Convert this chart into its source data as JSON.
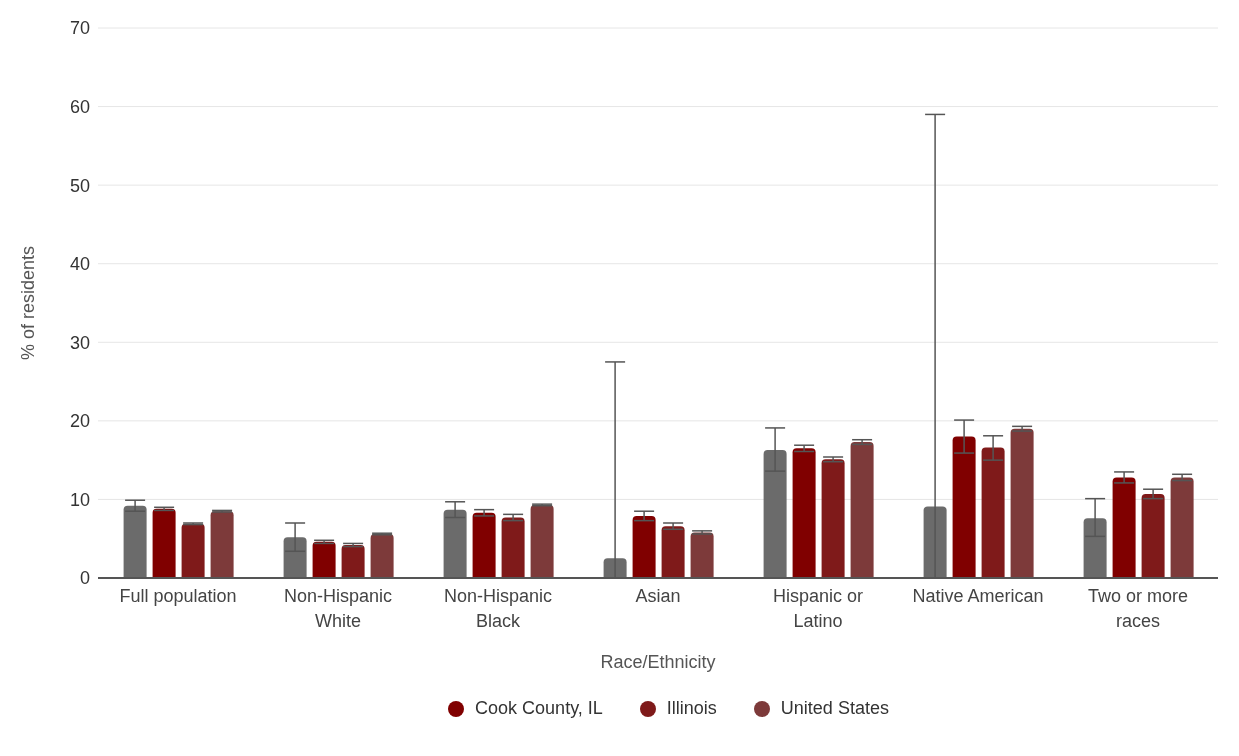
{
  "chart_data": {
    "type": "bar",
    "xlabel": "Race/Ethnicity",
    "ylabel": "% of residents",
    "categories": [
      "Full population",
      "Non-Hispanic White",
      "Non-Hispanic Black",
      "Asian",
      "Hispanic or Latino",
      "Native American",
      "Two or more races"
    ],
    "series": [
      {
        "color": "#6b6b6b",
        "values": [
          9.2,
          5.2,
          8.7,
          2.5,
          16.3,
          9.1,
          7.6
        ],
        "errors": [
          0.7,
          [
            3.4,
            7.0
          ],
          1.0,
          [
            0,
            27.5
          ],
          [
            13.6,
            19.1
          ],
          [
            0,
            59
          ],
          [
            5.3,
            10.1
          ]
        ]
      },
      {
        "name": "Cook County, IL",
        "color": "#800000",
        "values": [
          8.8,
          4.6,
          8.3,
          7.9,
          16.5,
          18.0,
          12.8
        ],
        "errors": [
          0.2,
          0.2,
          0.4,
          0.6,
          0.4,
          [
            15.9,
            20.1
          ],
          0.7
        ]
      },
      {
        "name": "Illinois",
        "color": "#7f1a1a",
        "values": [
          6.9,
          4.2,
          7.7,
          6.6,
          15.1,
          16.6,
          10.7
        ],
        "errors": [
          0.1,
          0.2,
          0.4,
          0.4,
          0.3,
          [
            15.0,
            18.1
          ],
          0.6
        ]
      },
      {
        "name": "United States",
        "color": "#7d3a3a",
        "values": [
          8.5,
          5.6,
          9.3,
          5.8,
          17.3,
          19.0,
          12.8
        ],
        "errors": [
          0.1,
          0.1,
          0.1,
          0.2,
          0.3,
          0.3,
          0.4
        ]
      }
    ],
    "ylim": [
      0,
      70
    ],
    "yticks": [
      0,
      10,
      20,
      30,
      40,
      50,
      60,
      70
    ],
    "grid": "y",
    "legend": "bottom"
  }
}
